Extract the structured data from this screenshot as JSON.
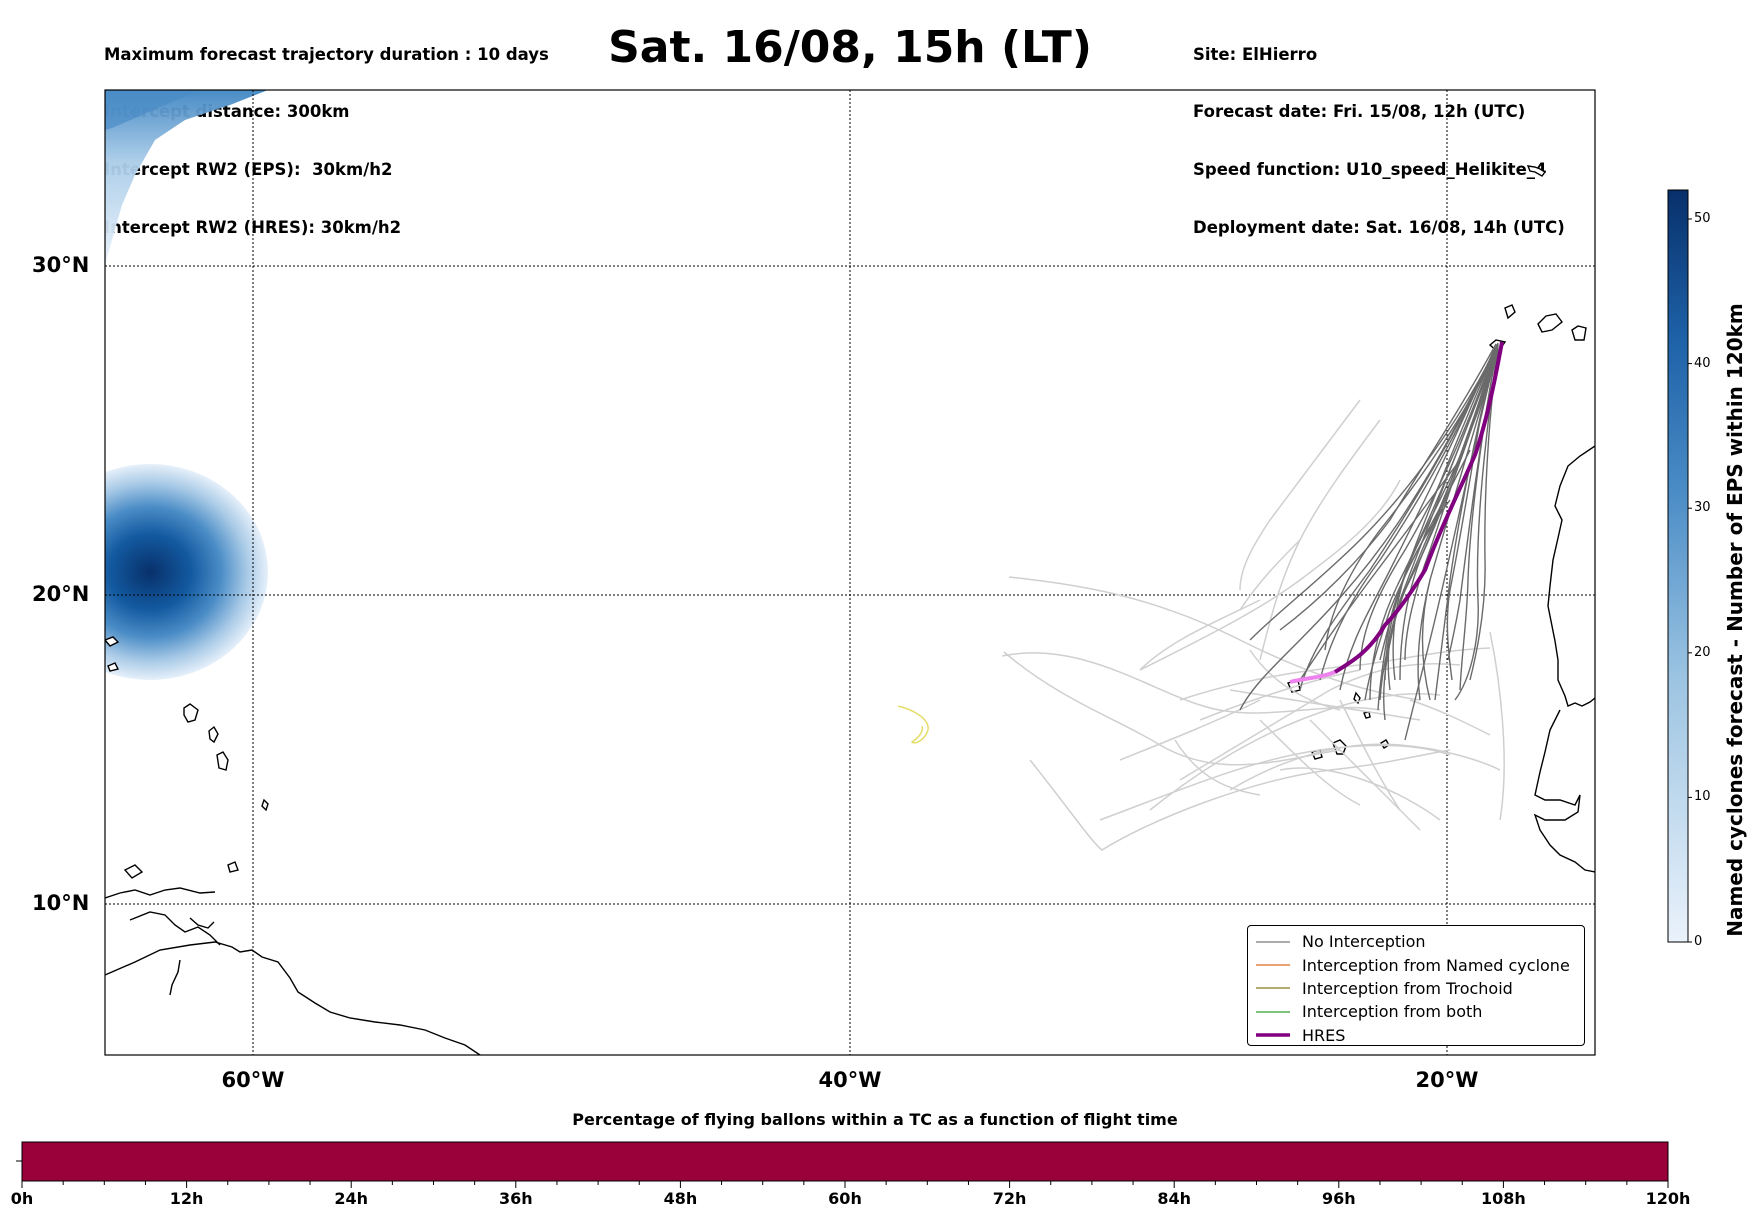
{
  "header": {
    "left_lines": [
      "Maximum forecast trajectory duration : 10 days",
      "Intercept distance: 300km",
      "Intercept RW2 (EPS):  30km/h2",
      "Intercept RW2 (HRES): 30km/h2"
    ],
    "title": "Sat. 16/08, 15h (LT)",
    "right_lines": [
      "Site: ElHierro",
      "Forecast date: Fri. 15/08, 12h (UTC)",
      "Speed function: U10_speed_Helikite_4",
      "Deployment date: Sat. 16/08, 14h (UTC)"
    ]
  },
  "map": {
    "lat_labels": [
      "30°N",
      "20°N",
      "10°N"
    ],
    "lon_labels": [
      "60°W",
      "40°W",
      "20°W"
    ],
    "colors": {
      "no_interception": "#7a7a7a",
      "named_cyclone": "#e06b1f",
      "trochoid": "#8a7a1a",
      "both": "#2ca02c",
      "hres": "#800080",
      "hres_tail": "#ee82ee",
      "off_run": "#e5dd6a"
    }
  },
  "legend": {
    "items": [
      {
        "label": "No Interception",
        "color": "#7a7a7a",
        "width": 1
      },
      {
        "label": "Interception from Named cyclone",
        "color": "#e06b1f",
        "width": 1
      },
      {
        "label": "Interception from Trochoid",
        "color": "#8a7a1a",
        "width": 1
      },
      {
        "label": "Interception from both",
        "color": "#2ca02c",
        "width": 1
      },
      {
        "label": "HRES",
        "color": "#800080",
        "width": 3
      }
    ]
  },
  "colorbar": {
    "label": "Named cyclones forecast - Number of EPS within 120km",
    "ticks": [
      "0",
      "10",
      "20",
      "30",
      "40",
      "50"
    ],
    "min": 0,
    "max": 52,
    "color_low": "#eaf2fb",
    "color_high": "#08306b"
  },
  "timebar": {
    "title": "Percentage of flying ballons within a TC as a function of flight time",
    "ticks": [
      "0h",
      "12h",
      "24h",
      "36h",
      "48h",
      "60h",
      "72h",
      "84h",
      "96h",
      "108h",
      "120h"
    ],
    "fill_color": "#9a0039"
  }
}
